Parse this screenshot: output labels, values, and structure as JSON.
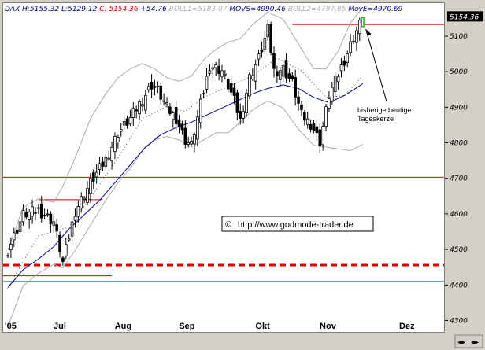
{
  "header": {
    "symbol": "DAX",
    "high_label": "H:5155.32",
    "low_label": "L:5129.12",
    "close_prefix": "C:",
    "close_value": "5154.36",
    "change": "+54.76",
    "boll1": "BOLL1=5183.07",
    "movs": "MOVS=4990.46",
    "boll2": "BOLL2=4797.85",
    "move": "MovE=4970.69"
  },
  "price_tag": "5154.36",
  "annotation": {
    "line1": "bisherige heutige",
    "line2": "Tageskerze"
  },
  "watermark": {
    "symbol": "©",
    "text": "http://www.godmode-trader.de"
  },
  "colors": {
    "up": "#ffffff",
    "down": "#000000",
    "move": "#000099",
    "resistance": "#cc0000",
    "support_dashed": "#dd0000",
    "support_teal": "#007777",
    "boll": "#aaaaaa",
    "last_candle": "#22aa22",
    "price_tag_bg": "#000000"
  },
  "chart_data": {
    "type": "candlestick",
    "x_labels": [
      "'05",
      "Jul",
      "Aug",
      "Sep",
      "Okt",
      "Nov",
      "Dez"
    ],
    "y_ticks": [
      4300,
      4400,
      4500,
      4600,
      4700,
      4800,
      4900,
      5000,
      5100
    ],
    "ylim": [
      4270,
      5195
    ],
    "n_days": 130,
    "horizontal_lines": [
      {
        "id": "res-5135",
        "value": 5135,
        "x_from": 93,
        "x_to": 130,
        "style": "solid",
        "color": "#cc0000"
      },
      {
        "id": "res-4705",
        "value": 4705,
        "x_from": 0,
        "x_to": 130,
        "style": "solid",
        "color": "#cc0000"
      },
      {
        "id": "res-4642",
        "value": 4642,
        "x_from": 10,
        "x_to": 31,
        "style": "solid",
        "color": "#cc0000"
      },
      {
        "id": "sup-4458",
        "value": 4458,
        "x_from": 0,
        "x_to": 130,
        "style": "dashed",
        "color": "#dd0000"
      },
      {
        "id": "sup-4428",
        "value": 4428,
        "x_from": 0,
        "x_to": 34,
        "style": "solid",
        "color": "#cc0000"
      },
      {
        "id": "sup-4412",
        "value": 4412,
        "x_from": 0,
        "x_to": 130,
        "style": "solid",
        "color": "#007777"
      }
    ],
    "waypoints": [
      [
        0,
        4500
      ],
      [
        5,
        4600
      ],
      [
        10,
        4612
      ],
      [
        15,
        4580
      ],
      [
        18,
        4465
      ],
      [
        22,
        4610
      ],
      [
        27,
        4690
      ],
      [
        32,
        4755
      ],
      [
        36,
        4830
      ],
      [
        40,
        4870
      ],
      [
        44,
        4925
      ],
      [
        47,
        4965
      ],
      [
        49,
        4950
      ],
      [
        52,
        4900
      ],
      [
        55,
        4870
      ],
      [
        58,
        4810
      ],
      [
        60,
        4795
      ],
      [
        63,
        4910
      ],
      [
        66,
        5020
      ],
      [
        70,
        5005
      ],
      [
        74,
        4920
      ],
      [
        76,
        4865
      ],
      [
        79,
        4985
      ],
      [
        82,
        5040
      ],
      [
        85,
        5120
      ],
      [
        87,
        5005
      ],
      [
        90,
        5010
      ],
      [
        93,
        4970
      ],
      [
        96,
        4880
      ],
      [
        99,
        4855
      ],
      [
        102,
        4805
      ],
      [
        105,
        4935
      ],
      [
        108,
        4995
      ],
      [
        111,
        5055
      ],
      [
        113,
        5100
      ],
      [
        115,
        5135
      ],
      [
        116,
        5154
      ]
    ],
    "move_line": [
      [
        0,
        4395
      ],
      [
        5,
        4445
      ],
      [
        10,
        4475
      ],
      [
        15,
        4510
      ],
      [
        20,
        4560
      ],
      [
        25,
        4600
      ],
      [
        30,
        4640
      ],
      [
        35,
        4690
      ],
      [
        40,
        4740
      ],
      [
        45,
        4790
      ],
      [
        50,
        4825
      ],
      [
        55,
        4845
      ],
      [
        60,
        4860
      ],
      [
        65,
        4880
      ],
      [
        70,
        4900
      ],
      [
        75,
        4920
      ],
      [
        80,
        4940
      ],
      [
        85,
        4955
      ],
      [
        90,
        4965
      ],
      [
        95,
        4955
      ],
      [
        100,
        4930
      ],
      [
        105,
        4915
      ],
      [
        110,
        4935
      ],
      [
        116,
        4968
      ]
    ],
    "boll_upper": [
      [
        0,
        4500
      ],
      [
        5,
        4620
      ],
      [
        10,
        4645
      ],
      [
        15,
        4635
      ],
      [
        18,
        4680
      ],
      [
        22,
        4760
      ],
      [
        27,
        4870
      ],
      [
        32,
        4940
      ],
      [
        36,
        4985
      ],
      [
        40,
        5010
      ],
      [
        44,
        5025
      ],
      [
        48,
        5010
      ],
      [
        52,
        4985
      ],
      [
        56,
        4975
      ],
      [
        60,
        4990
      ],
      [
        64,
        5035
      ],
      [
        68,
        5065
      ],
      [
        72,
        5085
      ],
      [
        76,
        5095
      ],
      [
        80,
        5135
      ],
      [
        85,
        5170
      ],
      [
        90,
        5150
      ],
      [
        95,
        5080
      ],
      [
        100,
        5010
      ],
      [
        104,
        5010
      ],
      [
        108,
        5060
      ],
      [
        112,
        5140
      ],
      [
        116,
        5183
      ]
    ],
    "boll_lower": [
      [
        0,
        4285
      ],
      [
        5,
        4400
      ],
      [
        10,
        4435
      ],
      [
        15,
        4460
      ],
      [
        18,
        4450
      ],
      [
        22,
        4500
      ],
      [
        27,
        4570
      ],
      [
        32,
        4640
      ],
      [
        36,
        4690
      ],
      [
        40,
        4730
      ],
      [
        44,
        4780
      ],
      [
        48,
        4810
      ],
      [
        52,
        4820
      ],
      [
        56,
        4810
      ],
      [
        60,
        4790
      ],
      [
        64,
        4810
      ],
      [
        68,
        4830
      ],
      [
        72,
        4830
      ],
      [
        76,
        4860
      ],
      [
        80,
        4895
      ],
      [
        85,
        4920
      ],
      [
        90,
        4900
      ],
      [
        95,
        4840
      ],
      [
        100,
        4795
      ],
      [
        104,
        4790
      ],
      [
        108,
        4785
      ],
      [
        112,
        4780
      ],
      [
        116,
        4798
      ]
    ],
    "movs_line": [
      [
        0,
        4395
      ],
      [
        10,
        4540
      ],
      [
        20,
        4565
      ],
      [
        28,
        4660
      ],
      [
        36,
        4760
      ],
      [
        44,
        4870
      ],
      [
        52,
        4905
      ],
      [
        58,
        4890
      ],
      [
        64,
        4930
      ],
      [
        72,
        4960
      ],
      [
        80,
        4990
      ],
      [
        88,
        5040
      ],
      [
        96,
        5005
      ],
      [
        104,
        4930
      ],
      [
        110,
        4935
      ],
      [
        116,
        4990
      ]
    ]
  }
}
